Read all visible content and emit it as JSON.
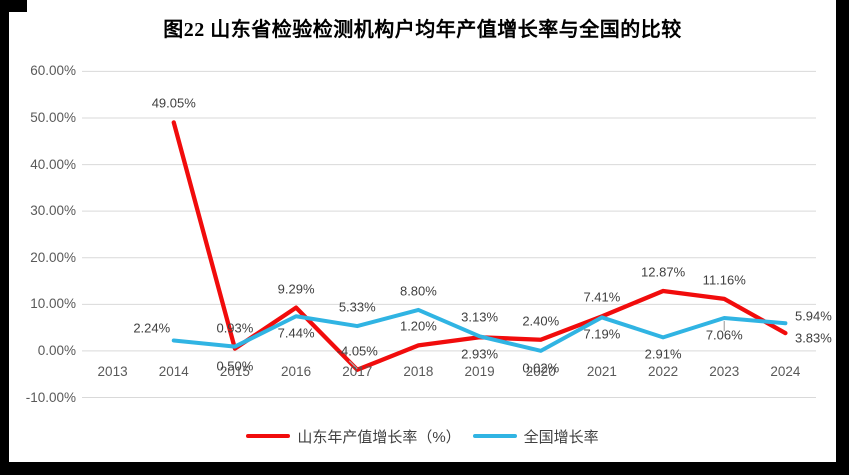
{
  "page": {
    "title": "图22 山东省检验检测机构户均年产值增长率与全国的比较"
  },
  "colors": {
    "outer_background": "#000000",
    "page_background": "#ffffff",
    "gridline": "#d9d9d9",
    "axis_text": "#595959",
    "data_label_text": "#404040",
    "title_text": "#000000",
    "leader_line": "#a6a6a6",
    "shandong_red": "#f10c0c",
    "national_blue": "#30b4e3"
  },
  "chart_data": {
    "type": "line",
    "title": "图22 山东省检验检测机构户均年产值增长率与全国的比较",
    "x": [
      "2013",
      "2014",
      "2015",
      "2016",
      "2017",
      "2018",
      "2019",
      "2020",
      "2021",
      "2022",
      "2023",
      "2024"
    ],
    "ylim": [
      -10,
      60
    ],
    "ytick_values": [
      60,
      50,
      40,
      30,
      20,
      10,
      0,
      -10
    ],
    "ytick_labels": [
      "60.00%",
      "50.00%",
      "40.00%",
      "30.00%",
      "20.00%",
      "10.00%",
      "0.00%",
      "-10.00%"
    ],
    "grid": true,
    "legend_position": "bottom",
    "xlabel": "",
    "ylabel": "",
    "series": [
      {
        "name": "山东年产值增长率（%）",
        "color": "#f10c0c",
        "stroke_width": 4.3,
        "values": [
          null,
          49.05,
          0.5,
          9.29,
          -4.05,
          1.2,
          2.93,
          2.4,
          7.41,
          12.87,
          11.16,
          3.83
        ],
        "labels": [
          null,
          "49.05%",
          "0.50%",
          "9.29%",
          "-4.05%",
          "1.20%",
          "2.93%",
          "2.40%",
          "7.41%",
          "12.87%",
          "11.16%",
          "3.83%"
        ],
        "label_placements": [
          null,
          "above",
          "below",
          "above",
          "above",
          "above",
          "below",
          "above",
          "above",
          "above",
          "above",
          "right-down"
        ],
        "leaders": [
          {
            "i": 4,
            "x1": -8,
            "y1": -9,
            "x2": 0,
            "y2": -1
          }
        ]
      },
      {
        "name": "全国增长率",
        "color": "#30b4e3",
        "stroke_width": 4.0,
        "values": [
          null,
          2.24,
          0.93,
          7.44,
          5.33,
          8.8,
          3.13,
          0.02,
          7.19,
          2.91,
          7.06,
          5.94
        ],
        "labels": [
          null,
          "2.24%",
          "0.93%",
          "7.44%",
          "5.33%",
          "8.80%",
          "3.13%",
          "0.02%",
          "7.19%",
          "2.91%",
          "7.06%",
          "5.94%"
        ],
        "label_placements": [
          null,
          "above-left",
          "above",
          "below",
          "above",
          "above",
          "above",
          "below",
          "below",
          "below",
          "below",
          "right-up"
        ],
        "leaders": [
          {
            "i": 10,
            "x1": 0,
            "y1": 3,
            "x2": 0,
            "y2": 13
          }
        ]
      }
    ]
  },
  "legend": {
    "shandong_label": "山东年产值增长率（%）",
    "national_label": "全国增长率"
  }
}
